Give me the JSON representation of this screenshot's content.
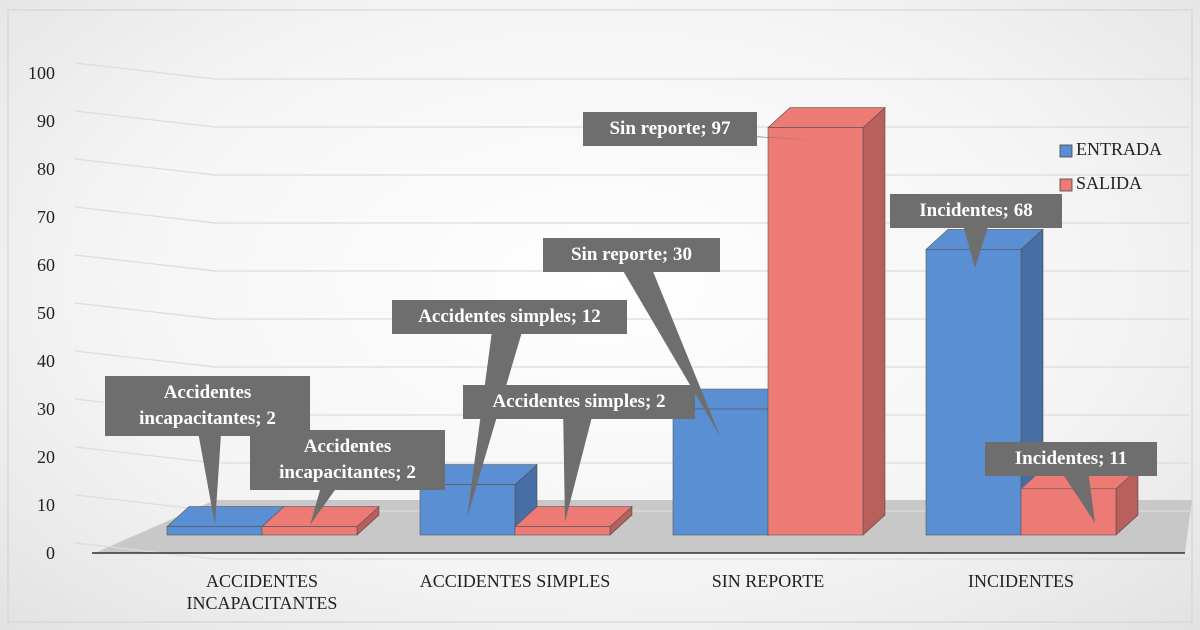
{
  "chart_data": {
    "type": "bar3d",
    "categories": [
      "ACCIDENTES INCAPACITANTES",
      "ACCIDENTES SIMPLES",
      "SIN REPORTE",
      "INCIDENTES"
    ],
    "series": [
      {
        "name": "ENTRADA",
        "color": "#5b8fd4",
        "values": [
          2,
          12,
          30,
          68
        ],
        "value_labels": [
          "Accidentes incapacitantes; 2",
          "Accidentes simples; 12",
          "Sin reporte; 30",
          "Incidentes; 68"
        ]
      },
      {
        "name": "SALIDA",
        "color": "#ee7a76",
        "values": [
          2,
          2,
          97,
          11
        ],
        "value_labels": [
          "Accidentes incapacitantes; 2",
          "Accidentes simples; 2",
          "Sin reporte; 97",
          "Incidentes; 11"
        ]
      }
    ],
    "ylim": [
      0,
      100
    ],
    "yticks": [
      0,
      10,
      20,
      30,
      40,
      50,
      60,
      70,
      80,
      90,
      100
    ],
    "grid": true,
    "legend": "right"
  }
}
